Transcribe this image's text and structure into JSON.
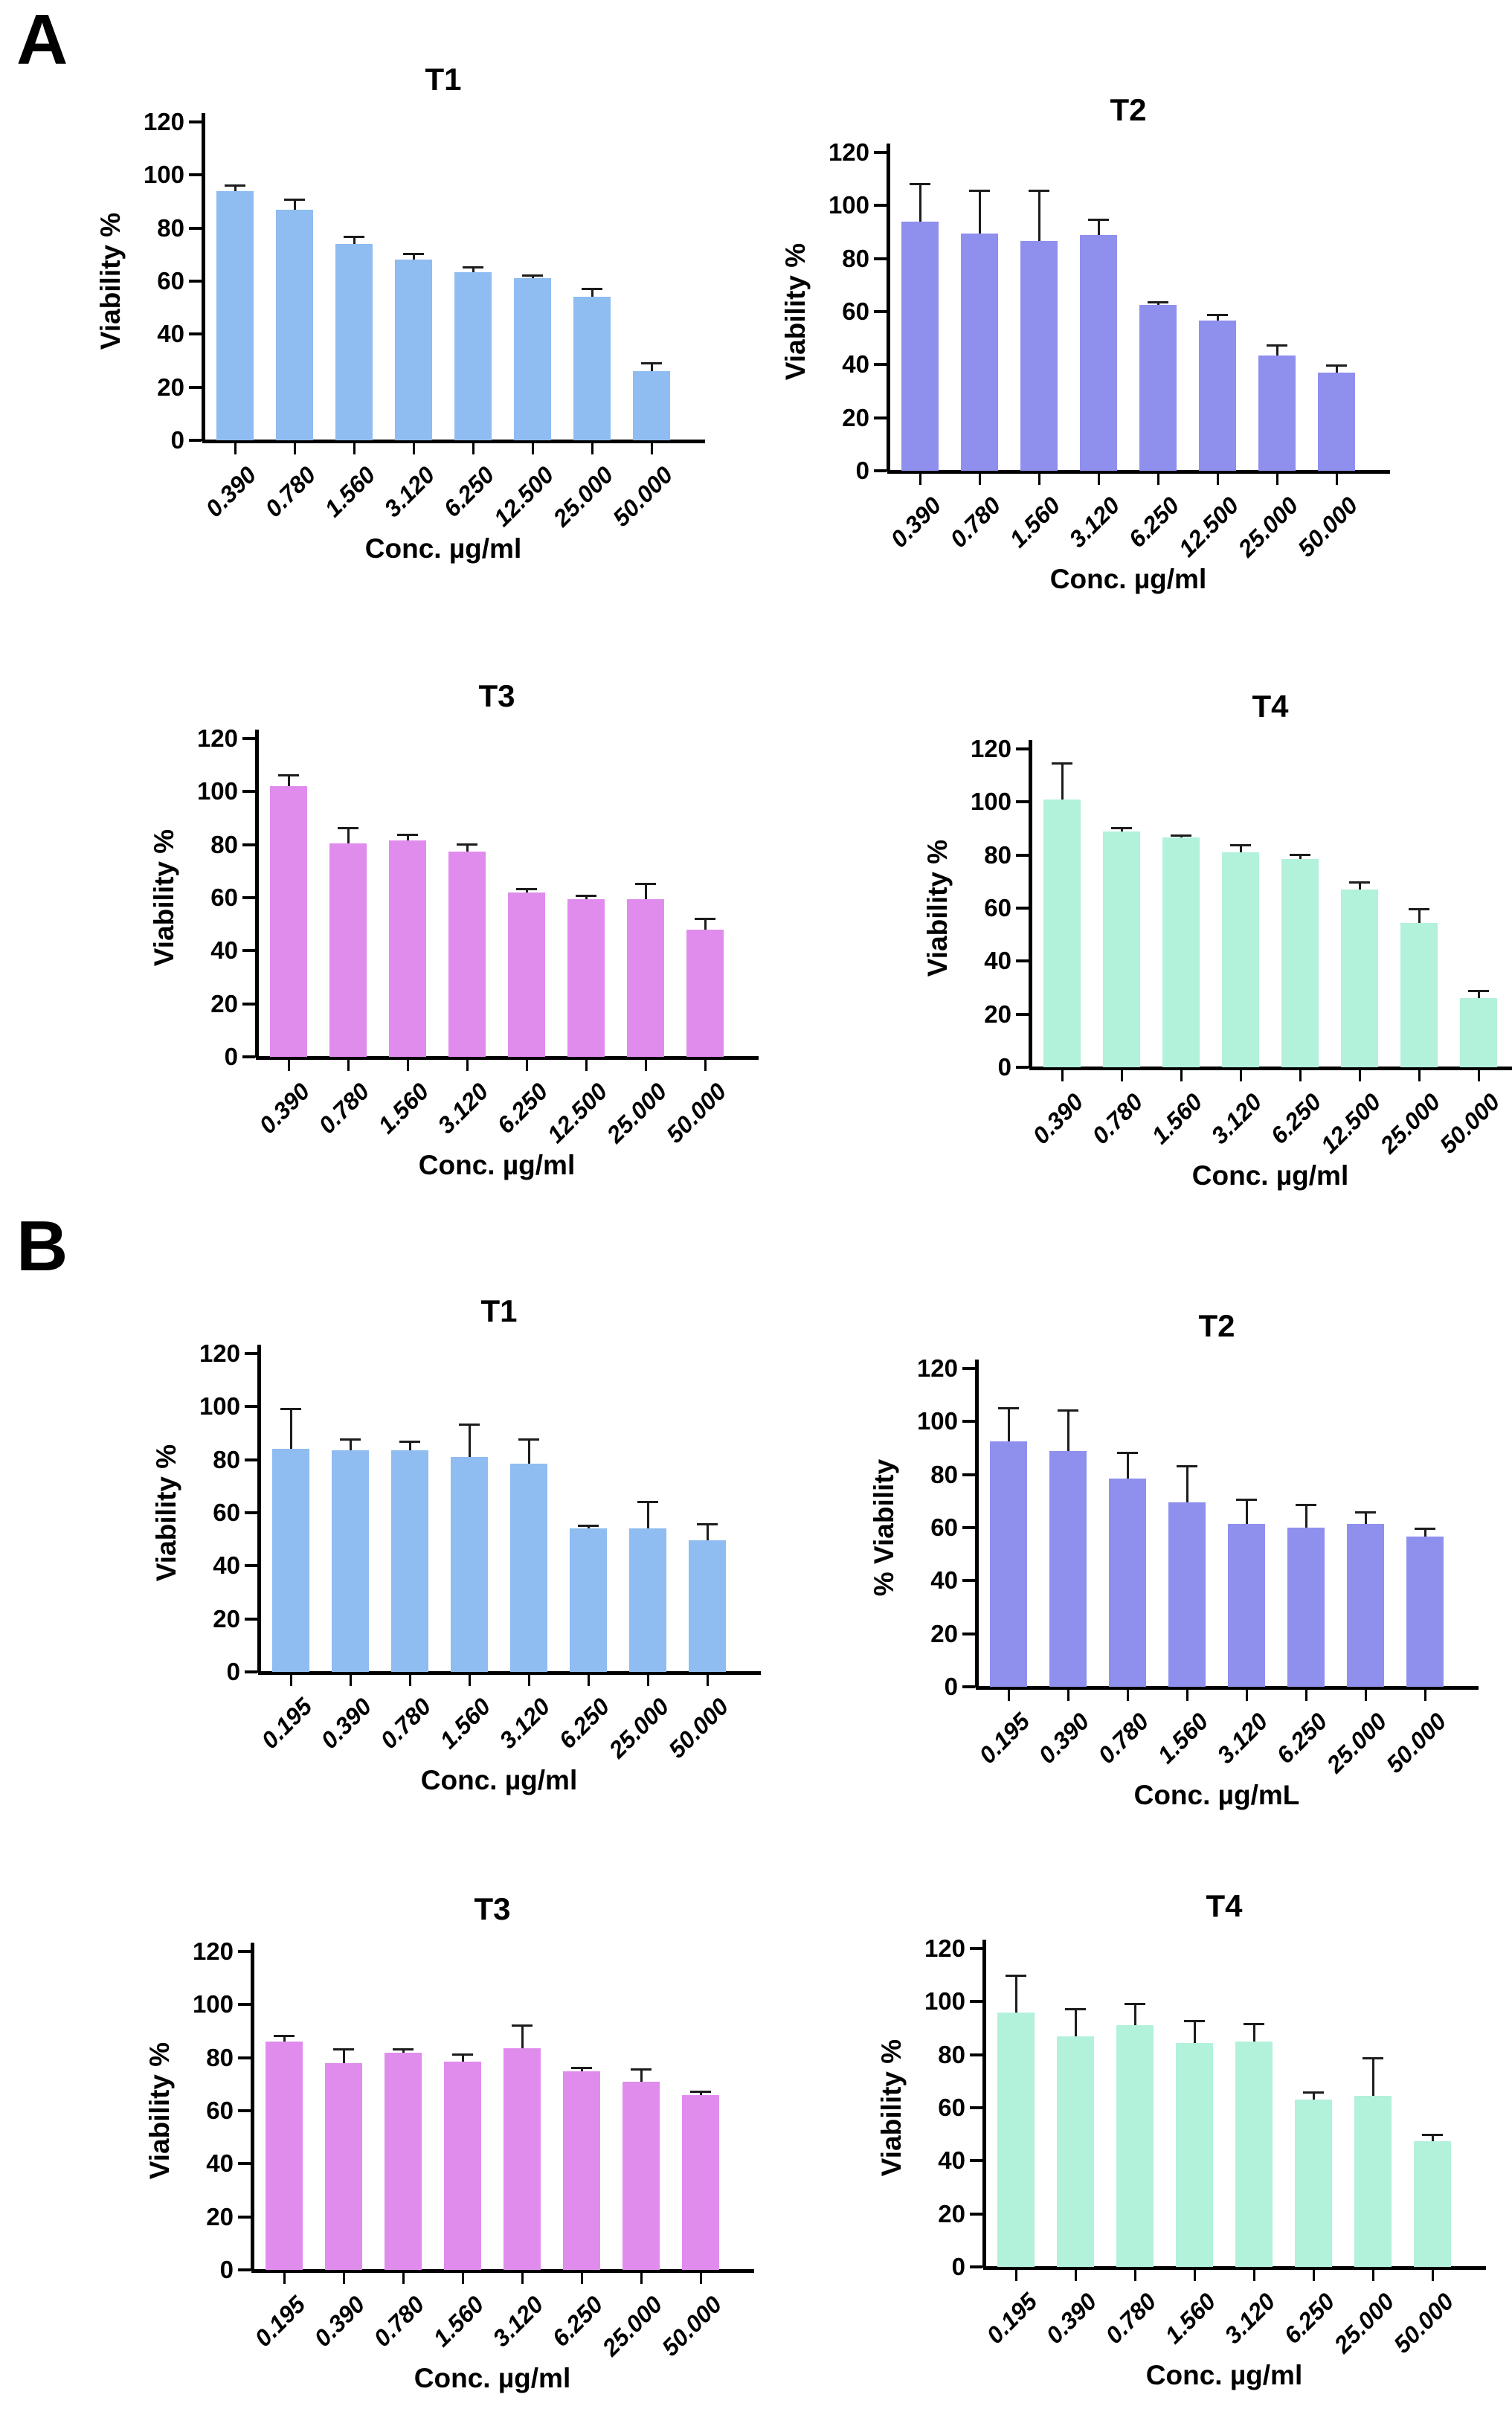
{
  "figure": {
    "panels": [
      {
        "label": "A"
      },
      {
        "label": "B"
      }
    ]
  },
  "chart_data": [
    {
      "type": "bar",
      "panel": "A",
      "title": "T1",
      "ylabel": "Viability %",
      "xlabel": "Conc. µg/ml",
      "ylim": [
        0,
        120
      ],
      "ystep": 20,
      "grid": false,
      "legend": "none",
      "bar_color": "#8FBCF1",
      "error_color": "#1c1c1c",
      "categories": [
        "0.390",
        "0.780",
        "1.560",
        "3.120",
        "6.250",
        "12.500",
        "25.000",
        "50.000"
      ],
      "values": [
        94,
        87,
        74,
        68,
        63.5,
        61,
        54,
        26
      ],
      "errors": [
        2,
        3.5,
        2.5,
        2,
        1.5,
        1,
        3,
        3
      ]
    },
    {
      "type": "bar",
      "panel": "A",
      "title": "T2",
      "ylabel": "Viability %",
      "xlabel": "Conc. µg/ml",
      "ylim": [
        0,
        120
      ],
      "ystep": 20,
      "grid": false,
      "legend": "none",
      "bar_color": "#8F8FEE",
      "error_color": "#1c1c1c",
      "categories": [
        "0.390",
        "0.780",
        "1.560",
        "3.120",
        "6.250",
        "12.500",
        "25.000",
        "50.000"
      ],
      "values": [
        94,
        89.5,
        86.5,
        89,
        62.5,
        56.5,
        43.5,
        37
      ],
      "errors": [
        14,
        16,
        19,
        5.5,
        1,
        2,
        3.5,
        2.5
      ]
    },
    {
      "type": "bar",
      "panel": "A",
      "title": "T3",
      "ylabel": "Viability %",
      "xlabel": "Conc. µg/ml",
      "ylim": [
        0,
        120
      ],
      "ystep": 20,
      "grid": false,
      "legend": "none",
      "bar_color": "#E08CED",
      "error_color": "#1c1c1c",
      "categories": [
        "0.390",
        "0.780",
        "1.560",
        "3.120",
        "6.250",
        "12.500",
        "25.000",
        "50.000"
      ],
      "values": [
        102,
        80.5,
        81.5,
        77.5,
        62,
        59.5,
        59.5,
        48
      ],
      "errors": [
        4,
        5.5,
        2,
        2.5,
        1,
        1,
        5.5,
        4
      ]
    },
    {
      "type": "bar",
      "panel": "A",
      "title": "T4",
      "ylabel": "Viability %",
      "xlabel": "Conc. µg/ml",
      "ylim": [
        0,
        120
      ],
      "ystep": 20,
      "grid": false,
      "legend": "none",
      "bar_color": "#B2F1DA",
      "error_color": "#1c1c1c",
      "categories": [
        "0.390",
        "0.780",
        "1.560",
        "3.120",
        "6.250",
        "12.500",
        "25.000",
        "50.000"
      ],
      "values": [
        101,
        89,
        86.5,
        81,
        78.5,
        67,
        54.5,
        26
      ],
      "errors": [
        13.5,
        1,
        0.8,
        2.5,
        1.5,
        2.5,
        5,
        2.5
      ]
    },
    {
      "type": "bar",
      "panel": "B",
      "title": "T1",
      "ylabel": "Viability %",
      "xlabel": "Conc. µg/ml",
      "ylim": [
        0,
        120
      ],
      "ystep": 20,
      "grid": false,
      "legend": "none",
      "bar_color": "#8FBCF1",
      "error_color": "#1c1c1c",
      "categories": [
        "0.195",
        "0.390",
        "0.780",
        "1.560",
        "3.120",
        "6.250",
        "25.000",
        "50.000"
      ],
      "values": [
        84,
        83.5,
        83.5,
        81,
        78.5,
        54,
        54,
        49.5
      ],
      "errors": [
        15,
        4,
        3,
        12,
        9,
        1,
        10,
        6
      ]
    },
    {
      "type": "bar",
      "panel": "B",
      "title": "T2",
      "ylabel": "% Viability",
      "xlabel": "Conc. µg/mL",
      "ylim": [
        0,
        120
      ],
      "ystep": 20,
      "grid": false,
      "legend": "none",
      "bar_color": "#8F8FEE",
      "error_color": "#1c1c1c",
      "categories": [
        "0.195",
        "0.390",
        "0.780",
        "1.560",
        "3.120",
        "6.250",
        "25.000",
        "50.000"
      ],
      "values": [
        92.5,
        89,
        78.5,
        69.5,
        61.5,
        60,
        61.5,
        56.5
      ],
      "errors": [
        12.5,
        15,
        9.5,
        13.5,
        9,
        8.5,
        4,
        3
      ]
    },
    {
      "type": "bar",
      "panel": "B",
      "title": "T3",
      "ylabel": "Viability %",
      "xlabel": "Conc. µg/ml",
      "ylim": [
        0,
        120
      ],
      "ystep": 20,
      "grid": false,
      "legend": "none",
      "bar_color": "#E08CED",
      "error_color": "#1c1c1c",
      "categories": [
        "0.195",
        "0.390",
        "0.780",
        "1.560",
        "3.120",
        "6.250",
        "25.000",
        "50.000"
      ],
      "values": [
        86,
        78,
        82,
        78.5,
        83.5,
        75,
        71,
        66
      ],
      "errors": [
        2,
        5,
        1,
        2.5,
        8.5,
        1,
        4.5,
        1
      ]
    },
    {
      "type": "bar",
      "panel": "B",
      "title": "T4",
      "ylabel": "Viability %",
      "xlabel": "Conc. µg/ml",
      "ylim": [
        0,
        120
      ],
      "ystep": 20,
      "grid": false,
      "legend": "none",
      "bar_color": "#B2F1DA",
      "error_color": "#1c1c1c",
      "categories": [
        "0.195",
        "0.390",
        "0.780",
        "1.560",
        "3.120",
        "6.250",
        "25.000",
        "50.000"
      ],
      "values": [
        96,
        87,
        91,
        84.5,
        85,
        63,
        64.5,
        47.5
      ],
      "errors": [
        13.5,
        10,
        8,
        8,
        6.5,
        2.5,
        14,
        2
      ]
    }
  ]
}
